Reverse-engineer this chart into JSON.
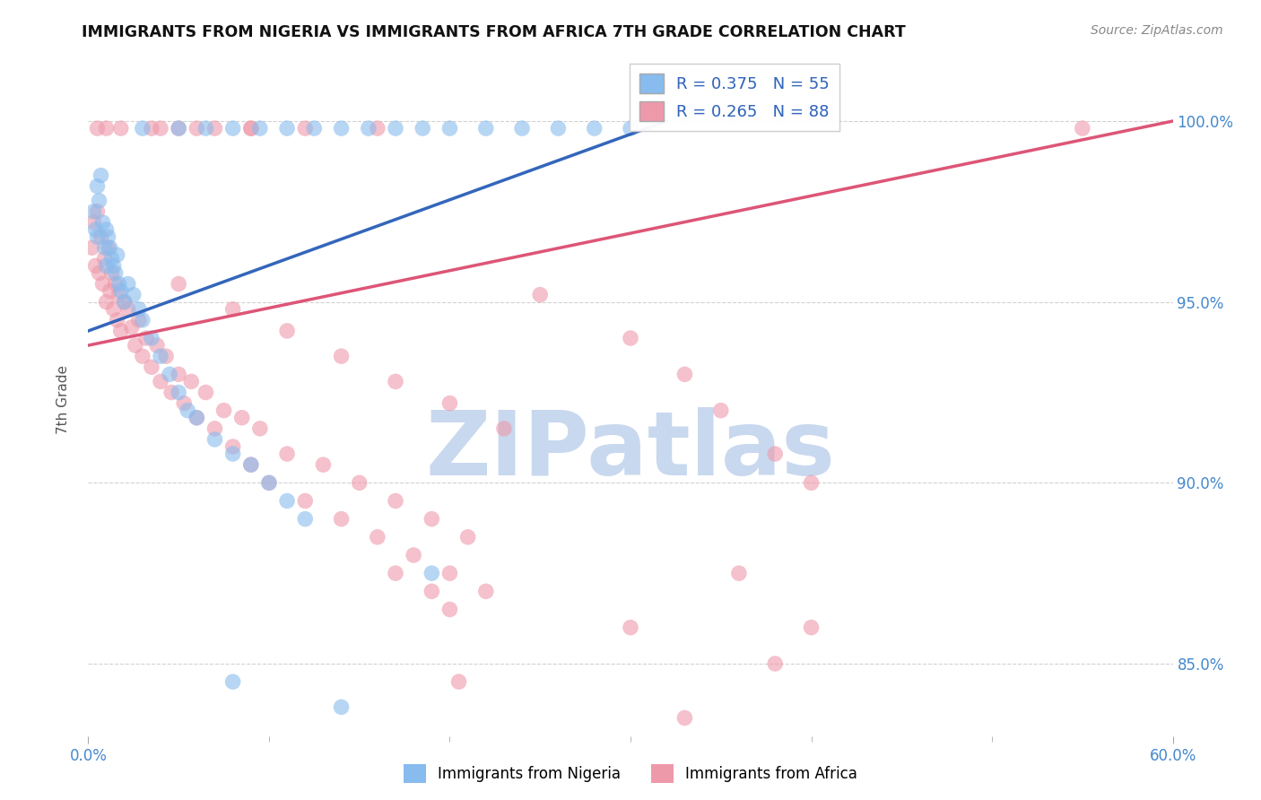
{
  "title": "IMMIGRANTS FROM NIGERIA VS IMMIGRANTS FROM AFRICA 7TH GRADE CORRELATION CHART",
  "source": "Source: ZipAtlas.com",
  "ylabel": "7th Grade",
  "y_tick_labels": [
    "85.0%",
    "90.0%",
    "95.0%",
    "100.0%"
  ],
  "y_tick_values": [
    85.0,
    90.0,
    95.0,
    100.0
  ],
  "xlim": [
    0.0,
    60.0
  ],
  "ylim": [
    83.0,
    101.8
  ],
  "legend_R1": "R = 0.375",
  "legend_N1": "N = 55",
  "legend_R2": "R = 0.265",
  "legend_N2": "N = 88",
  "legend_label1": "Immigrants from Nigeria",
  "legend_label2": "Immigrants from Africa",
  "color_nigeria": "#88BBEE",
  "color_africa": "#EE99AA",
  "color_nigeria_line": "#3366BB",
  "color_africa_line": "#DD5577",
  "color_title": "#111111",
  "color_source": "#888888",
  "color_axis_label": "#4488CC",
  "watermark_text": "ZIPatlas",
  "watermark_color": "#C8D8EE",
  "nigeria_x": [
    0.3,
    0.4,
    0.5,
    0.5,
    0.6,
    0.7,
    0.8,
    0.9,
    1.0,
    1.0,
    1.1,
    1.2,
    1.3,
    1.4,
    1.5,
    1.6,
    1.7,
    1.8,
    2.0,
    2.2,
    2.5,
    2.8,
    3.0,
    3.5,
    4.0,
    4.5,
    5.0,
    5.5,
    6.0,
    7.0,
    8.0,
    9.0,
    10.0,
    11.0,
    12.0,
    3.0,
    5.0,
    6.5,
    8.0,
    9.5,
    11.0,
    12.5,
    14.0,
    15.5,
    17.0,
    18.5,
    20.0,
    22.0,
    24.0,
    26.0,
    28.0,
    30.0,
    8.0,
    14.0,
    19.0
  ],
  "nigeria_y": [
    97.5,
    97.0,
    96.8,
    98.2,
    97.8,
    98.5,
    97.2,
    96.5,
    97.0,
    96.0,
    96.8,
    96.5,
    96.2,
    96.0,
    95.8,
    96.3,
    95.5,
    95.3,
    95.0,
    95.5,
    95.2,
    94.8,
    94.5,
    94.0,
    93.5,
    93.0,
    92.5,
    92.0,
    91.8,
    91.2,
    90.8,
    90.5,
    90.0,
    89.5,
    89.0,
    99.8,
    99.8,
    99.8,
    99.8,
    99.8,
    99.8,
    99.8,
    99.8,
    99.8,
    99.8,
    99.8,
    99.8,
    99.8,
    99.8,
    99.8,
    99.8,
    99.8,
    84.5,
    83.8,
    87.5
  ],
  "africa_x": [
    0.2,
    0.3,
    0.4,
    0.5,
    0.6,
    0.7,
    0.8,
    0.9,
    1.0,
    1.1,
    1.2,
    1.3,
    1.4,
    1.5,
    1.6,
    1.7,
    1.8,
    2.0,
    2.2,
    2.4,
    2.6,
    2.8,
    3.0,
    3.2,
    3.5,
    3.8,
    4.0,
    4.3,
    4.6,
    5.0,
    5.3,
    5.7,
    6.0,
    6.5,
    7.0,
    7.5,
    8.0,
    8.5,
    9.0,
    9.5,
    10.0,
    11.0,
    12.0,
    13.0,
    14.0,
    15.0,
    16.0,
    17.0,
    18.0,
    19.0,
    20.0,
    21.0,
    22.0,
    5.0,
    8.0,
    11.0,
    14.0,
    17.0,
    20.0,
    23.0,
    25.0,
    30.0,
    33.0,
    35.0,
    38.0,
    40.0,
    4.0,
    6.0,
    9.0,
    12.0,
    16.0,
    17.0,
    19.0,
    20.0,
    20.5,
    30.0,
    33.0,
    36.0,
    38.0,
    40.0,
    55.0,
    0.5,
    1.0,
    1.8,
    3.5,
    5.0,
    7.0,
    9.0
  ],
  "africa_y": [
    96.5,
    97.2,
    96.0,
    97.5,
    95.8,
    96.8,
    95.5,
    96.2,
    95.0,
    96.5,
    95.3,
    95.8,
    94.8,
    95.5,
    94.5,
    95.2,
    94.2,
    95.0,
    94.8,
    94.3,
    93.8,
    94.5,
    93.5,
    94.0,
    93.2,
    93.8,
    92.8,
    93.5,
    92.5,
    93.0,
    92.2,
    92.8,
    91.8,
    92.5,
    91.5,
    92.0,
    91.0,
    91.8,
    90.5,
    91.5,
    90.0,
    90.8,
    89.5,
    90.5,
    89.0,
    90.0,
    88.5,
    89.5,
    88.0,
    89.0,
    87.5,
    88.5,
    87.0,
    95.5,
    94.8,
    94.2,
    93.5,
    92.8,
    92.2,
    91.5,
    95.2,
    94.0,
    93.0,
    92.0,
    90.8,
    90.0,
    99.8,
    99.8,
    99.8,
    99.8,
    99.8,
    87.5,
    87.0,
    86.5,
    84.5,
    86.0,
    83.5,
    87.5,
    85.0,
    86.0,
    99.8,
    99.8,
    99.8,
    99.8,
    99.8,
    99.8,
    99.8,
    99.8
  ],
  "nig_line_x0": 0.0,
  "nig_line_x1": 32.0,
  "nig_line_y0": 94.2,
  "nig_line_y1": 100.0,
  "afr_line_x0": 0.0,
  "afr_line_x1": 60.0,
  "afr_line_y0": 93.8,
  "afr_line_y1": 100.0
}
